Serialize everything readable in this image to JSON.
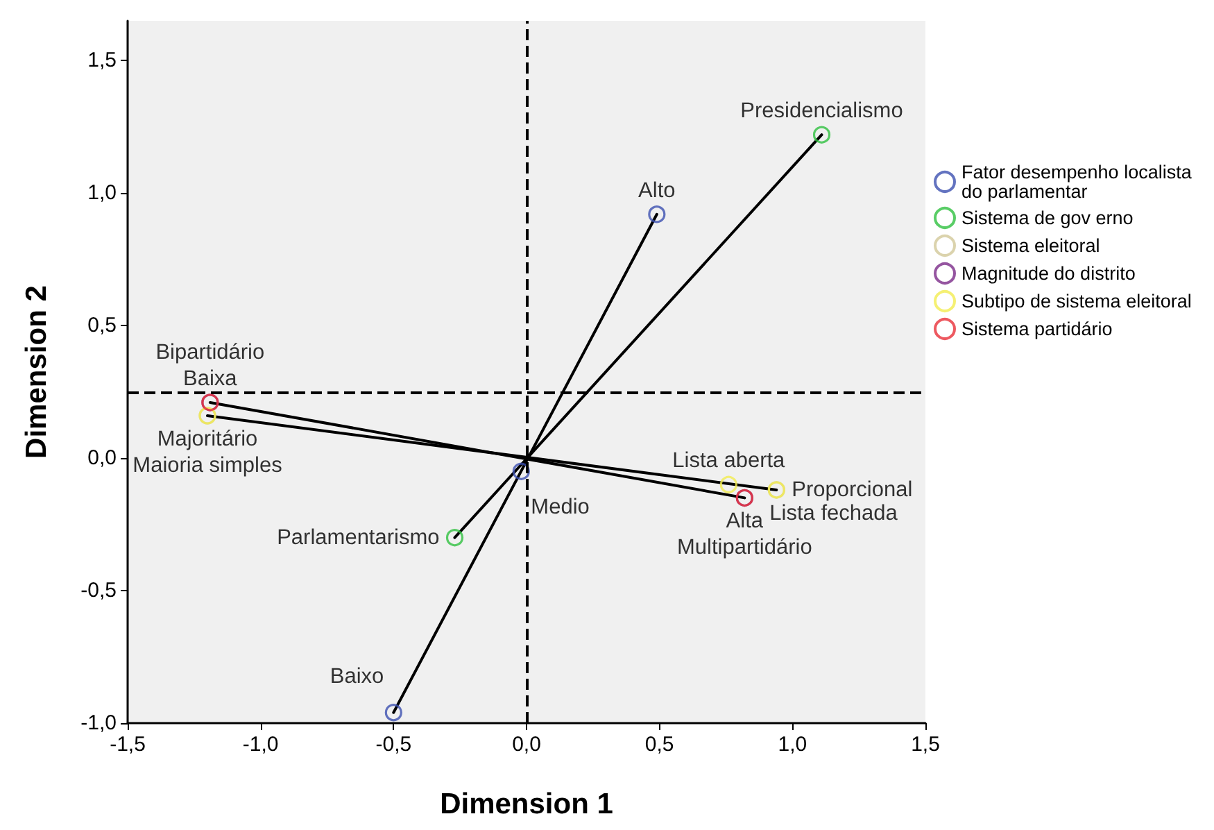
{
  "chart_data": {
    "type": "scatter",
    "xlabel": "Dimension 1",
    "ylabel": "Dimension 2",
    "grid": false,
    "legend": "right",
    "xlim": [
      -1.5,
      1.5
    ],
    "ylim": [
      -1.0,
      1.65
    ],
    "xticks": [
      {
        "value": -1.5,
        "label": "-1,5"
      },
      {
        "value": -1.0,
        "label": "-1,0"
      },
      {
        "value": -0.5,
        "label": "-0,5"
      },
      {
        "value": 0,
        "label": "0,0"
      },
      {
        "value": 0.5,
        "label": "0,5"
      },
      {
        "value": 1.0,
        "label": "1,0"
      },
      {
        "value": 1.5,
        "label": "1,5"
      }
    ],
    "yticks": [
      {
        "value": -1.0,
        "label": "-1,0"
      },
      {
        "value": -0.5,
        "label": "-0,5"
      },
      {
        "value": 0,
        "label": "0,0"
      },
      {
        "value": 0.5,
        "label": "0,5"
      },
      {
        "value": 1.0,
        "label": "1,0"
      },
      {
        "value": 1.5,
        "label": "1,5"
      }
    ],
    "series": [
      {
        "type": "line",
        "color": "#000000",
        "line_style": "solid",
        "x": [
          0.49,
          -0.5
        ],
        "values": [
          0.92,
          -0.96
        ]
      },
      {
        "type": "line",
        "color": "#000000",
        "line_style": "solid",
        "x": [
          1.11,
          -0.27
        ],
        "values": [
          1.22,
          -0.3
        ]
      },
      {
        "type": "line",
        "color": "#000000",
        "line_style": "solid",
        "x": [
          -1.19,
          0.82
        ],
        "values": [
          0.21,
          -0.15
        ]
      },
      {
        "type": "line",
        "color": "#000000",
        "line_style": "solid",
        "x": [
          -1.2,
          0.94
        ],
        "values": [
          0.16,
          -0.12
        ]
      },
      {
        "name": "Fator desempenho localista do parlamentar",
        "color": "#3c50b0",
        "marker": "circle",
        "x": [
          0.49,
          -0.02,
          -0.5
        ],
        "values": [
          0.92,
          -0.05,
          -0.96
        ],
        "value_labels": [
          "Alto",
          "Medio",
          "Baixo"
        ]
      },
      {
        "name": "Sistema de gov erno",
        "color": "#30c040",
        "marker": "circle",
        "x": [
          1.11,
          -0.27
        ],
        "values": [
          1.22,
          -0.3
        ],
        "value_labels": [
          "Presidencialismo",
          "Parlamentarismo"
        ]
      },
      {
        "name": "Sistema eleitoral",
        "color": "#d2c898",
        "marker": "circle",
        "x": [
          -1.2,
          0.94
        ],
        "values": [
          0.16,
          -0.12
        ],
        "value_labels": [
          "Majoritário",
          "Proporcional"
        ]
      },
      {
        "name": "Magnitude do distrito",
        "color": "#7a2a88",
        "marker": "circle",
        "x": [
          -1.19,
          0.82
        ],
        "values": [
          0.21,
          -0.15
        ],
        "value_labels": [
          "Baixa",
          "Alta"
        ]
      },
      {
        "name": "Subtipo de sistema eleitoral",
        "color": "#f2ec50",
        "marker": "circle",
        "x": [
          -1.2,
          0.76,
          0.94
        ],
        "values": [
          0.16,
          -0.1,
          -0.12
        ],
        "value_labels": [
          "Maioria simples",
          "Lista aberta",
          "Lista fechada"
        ]
      },
      {
        "name": "Sistema partidário",
        "color": "#e83038",
        "marker": "circle",
        "x": [
          -1.19,
          0.82
        ],
        "values": [
          0.21,
          -0.15
        ],
        "value_labels": [
          "Bipartidário",
          "Multipartidário"
        ]
      }
    ],
    "ref_lines": [
      {
        "axis": "x",
        "value": 0,
        "color": "#000000",
        "line_style": "dashed"
      },
      {
        "axis": "y",
        "value": 0.25,
        "color": "#000000",
        "line_style": "dashed"
      }
    ]
  }
}
